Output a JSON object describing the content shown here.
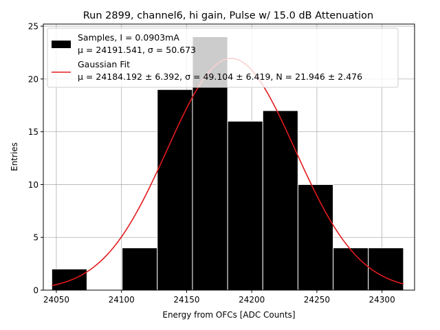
{
  "chart_data": {
    "type": "bar",
    "title": "Run 2899, channel6, hi gain, Pulse w/ 15.0 dB Attenuation",
    "xlabel": "Energy from OFCs [ADC Counts]",
    "ylabel": "Entries",
    "xlim": [
      24040.0,
      24325.0
    ],
    "ylim": [
      0,
      25.2
    ],
    "x_ticks": [
      24050,
      24100,
      24150,
      24200,
      24250,
      24300
    ],
    "y_ticks": [
      0,
      5,
      10,
      15,
      20,
      25
    ],
    "grid": true,
    "legend_position": "top-left",
    "histogram": {
      "bin_edges": [
        24046.5,
        24073.5,
        24100.5,
        24127.5,
        24154.5,
        24181.5,
        24208.5,
        24235.5,
        24262.5,
        24289.5,
        24316.5
      ],
      "counts": [
        2,
        0,
        4,
        19,
        24,
        16,
        17,
        10,
        4,
        4
      ],
      "color": "#000000",
      "edge_color": "#ffffff"
    },
    "fit": {
      "mu": 24184.192,
      "sigma": 49.104,
      "N": 21.946,
      "x_range": [
        24046.5,
        24316.5
      ],
      "color": "#e41a1c"
    },
    "legend": [
      {
        "line1": "Samples, I = 0.0903mA",
        "line2": "μ = 24191.541, σ = 50.673",
        "swatch": "box"
      },
      {
        "line1": "Gaussian Fit",
        "line2": "μ = 24184.192 ± 6.392, σ = 49.104 ± 6.419, N = 21.946 ± 2.476",
        "swatch": "line"
      }
    ]
  }
}
